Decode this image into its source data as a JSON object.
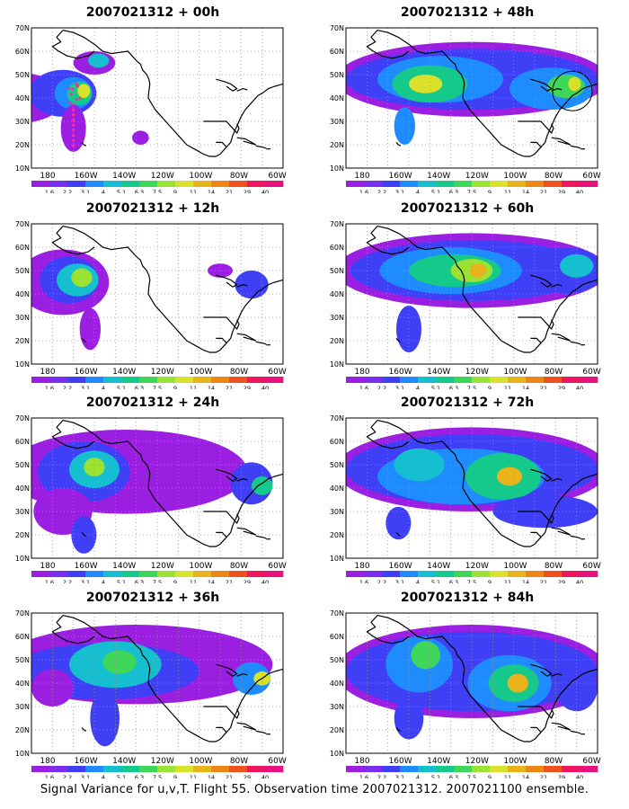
{
  "axis": {
    "lat_labels": [
      "70N",
      "60N",
      "50N",
      "40N",
      "30N",
      "20N",
      "10N"
    ],
    "lon_labels": [
      "180",
      "160W",
      "140W",
      "120W",
      "100W",
      "80W",
      "60W"
    ]
  },
  "colorbar": {
    "labels": [
      "1.6",
      "2.2",
      "3.1",
      "4",
      "5.1",
      "6.3",
      "7.5",
      "9",
      "11",
      "14",
      "21",
      "29",
      "40"
    ],
    "colors": [
      "#9b1fe0",
      "#7a2ef0",
      "#3f3ff5",
      "#1e8cff",
      "#15bfcf",
      "#15c98a",
      "#3fd75a",
      "#9be234",
      "#d9e12a",
      "#e9b31c",
      "#ee8517",
      "#f0521f",
      "#f0155f",
      "#e6127e"
    ]
  },
  "panels": [
    {
      "id": "00h",
      "title": "2007021312 + 00h"
    },
    {
      "id": "48h",
      "title": "2007021312 + 48h"
    },
    {
      "id": "12h",
      "title": "2007021312 + 12h"
    },
    {
      "id": "60h",
      "title": "2007021312 + 60h"
    },
    {
      "id": "24h",
      "title": "2007021312 + 24h"
    },
    {
      "id": "72h",
      "title": "2007021312 + 72h"
    },
    {
      "id": "36h",
      "title": "2007021312 + 36h"
    },
    {
      "id": "84h",
      "title": "2007021312 + 84h"
    }
  ],
  "caption": "Signal Variance for u,v,T. Flight 55. Observation time 2007021312. 2007021100 ensemble."
}
